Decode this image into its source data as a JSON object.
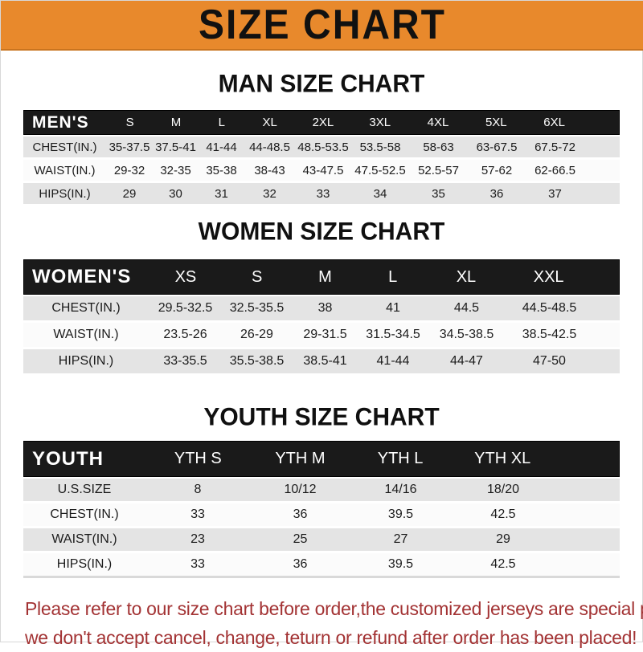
{
  "banner": {
    "title": "SIZE CHART"
  },
  "sections": [
    {
      "title": "MAN SIZE CHART",
      "header_label": "MEN'S",
      "sizes": [
        "S",
        "M",
        "L",
        "XL",
        "2XL",
        "3XL",
        "4XL",
        "5XL",
        "6XL"
      ],
      "rows": [
        {
          "label": "CHEST(IN.)",
          "values": [
            "35-37.5",
            "37.5-41",
            "41-44",
            "44-48.5",
            "48.5-53.5",
            "53.5-58",
            "58-63",
            "63-67.5",
            "67.5-72"
          ]
        },
        {
          "label": "WAIST(IN.)",
          "values": [
            "29-32",
            "32-35",
            "35-38",
            "38-43",
            "43-47.5",
            "47.5-52.5",
            "52.5-57",
            "57-62",
            "62-66.5"
          ]
        },
        {
          "label": "HIPS(IN.)",
          "values": [
            "29",
            "30",
            "31",
            "32",
            "33",
            "34",
            "35",
            "36",
            "37"
          ]
        }
      ]
    },
    {
      "title": "WOMEN SIZE CHART",
      "header_label": "WOMEN'S",
      "sizes": [
        "XS",
        "S",
        "M",
        "L",
        "XL",
        "XXL"
      ],
      "rows": [
        {
          "label": "CHEST(IN.)",
          "values": [
            "29.5-32.5",
            "32.5-35.5",
            "38",
            "41",
            "44.5",
            "44.5-48.5"
          ]
        },
        {
          "label": "WAIST(IN.)",
          "values": [
            "23.5-26",
            "26-29",
            "29-31.5",
            "31.5-34.5",
            "34.5-38.5",
            "38.5-42.5"
          ]
        },
        {
          "label": "HIPS(IN.)",
          "values": [
            "33-35.5",
            "35.5-38.5",
            "38.5-41",
            "41-44",
            "44-47",
            "47-50"
          ]
        }
      ]
    },
    {
      "title": "YOUTH SIZE CHART",
      "header_label": "YOUTH",
      "sizes": [
        "YTH S",
        "YTH M",
        "YTH L",
        "YTH XL"
      ],
      "rows": [
        {
          "label": "U.S.SIZE",
          "values": [
            "8",
            "10/12",
            "14/16",
            "18/20"
          ]
        },
        {
          "label": "CHEST(IN.)",
          "values": [
            "33",
            "36",
            "39.5",
            "42.5"
          ]
        },
        {
          "label": "WAIST(IN.)",
          "values": [
            "23",
            "25",
            "27",
            "29"
          ]
        },
        {
          "label": "HIPS(IN.)",
          "values": [
            "33",
            "36",
            "39.5",
            "42.5"
          ]
        }
      ]
    }
  ],
  "footer": {
    "line1": "Please refer to our size chart before order,the customized jerseys are special products,",
    "line2": "we don't accept cancel, change, teturn or refund after order has been placed!"
  },
  "colors": {
    "banner_bg": "#E8892C",
    "header_bar_bg": "#1A1A1A",
    "row_gray": "#E4E4E4",
    "row_white": "#FBFBFB",
    "footer_red": "#A33334"
  }
}
